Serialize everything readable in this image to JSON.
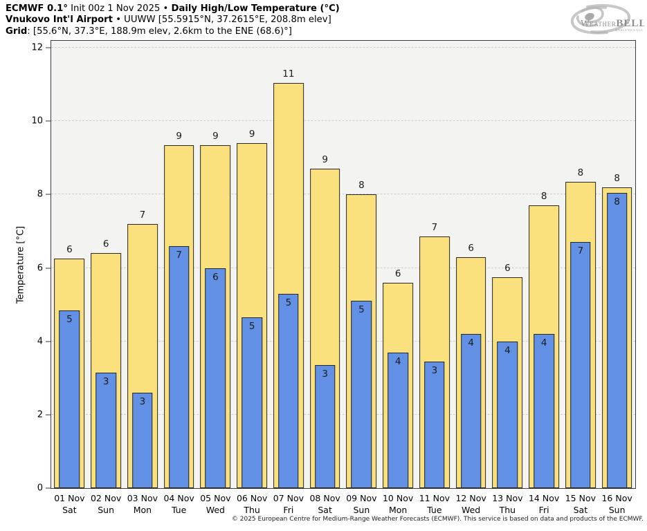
{
  "header": {
    "line1": {
      "bold1": "ECMWF 0.1°",
      "regular": " Init 00z 1 Nov 2025 • ",
      "bold2": "Daily High/Low Temperature (°C)"
    },
    "line2": {
      "bold": "Vnukovo Int'l Airport",
      "regular": " • UUWW [55.5915°N, 37.2615°E, 208.8m elev]"
    },
    "line3": {
      "bold": "Grid",
      "regular": ": [55.6°N, 37.3°E, 188.9m elev, 2.6km to the ENE (68.6)°]"
    }
  },
  "logo": {
    "w": "W",
    "eather": "EATHER",
    "bell": "BELL",
    "sub": "ANALYTICS LLC"
  },
  "chart_data": {
    "type": "bar",
    "title": "ECMWF 0.1° Init 00z 1 Nov 2025 — Daily High/Low Temperature (°C) — Vnukovo Int'l Airport",
    "ylabel": "Temperature [°C]",
    "xlabel": "",
    "ylim": [
      0,
      12.19
    ],
    "yticks": [
      0,
      2,
      4,
      6,
      8,
      10,
      12
    ],
    "grid": true,
    "legend": false,
    "categories": [
      "01 Nov",
      "02 Nov",
      "03 Nov",
      "04 Nov",
      "05 Nov",
      "06 Nov",
      "07 Nov",
      "08 Nov",
      "09 Nov",
      "10 Nov",
      "11 Nov",
      "12 Nov",
      "13 Nov",
      "14 Nov",
      "15 Nov",
      "16 Nov"
    ],
    "weekdays": [
      "Sat",
      "Sun",
      "Mon",
      "Tue",
      "Wed",
      "Thu",
      "Fri",
      "Sat",
      "Sun",
      "Mon",
      "Tue",
      "Wed",
      "Thu",
      "Fri",
      "Sat",
      "Sun"
    ],
    "series": [
      {
        "name": "Daily High",
        "color": "#fae17d",
        "values": [
          6.25,
          6.4,
          7.2,
          9.35,
          9.35,
          9.4,
          11.05,
          8.7,
          8.0,
          5.6,
          6.85,
          6.3,
          5.75,
          7.7,
          8.35,
          8.2
        ],
        "labels": [
          "6",
          "6",
          "7",
          "9",
          "9",
          "9",
          "11",
          "9",
          "8",
          "6",
          "7",
          "6",
          "6",
          "8",
          "8",
          "8"
        ]
      },
      {
        "name": "Daily Low",
        "color": "#6190e4",
        "values": [
          4.85,
          3.15,
          2.6,
          6.6,
          6.0,
          4.65,
          5.3,
          3.35,
          5.1,
          3.7,
          3.45,
          4.2,
          4.0,
          4.2,
          6.7,
          8.05
        ],
        "labels": [
          "5",
          "3",
          "3",
          "7",
          "6",
          "5",
          "5",
          "3",
          "5",
          "4",
          "3",
          "4",
          "4",
          "4",
          "7",
          "8"
        ]
      }
    ]
  },
  "colors": {
    "high_bar": "#fae17d",
    "low_bar": "#6190e4",
    "bar_border": "#262626",
    "plot_bg": "#f3f3f2",
    "gridline": "#cdcdcd",
    "logo_gray": "#a5a5a5"
  },
  "footer": {
    "copyright": "© 2025 European Centre for Medium-Range Weather Forecasts (ECMWF). This service is based on data and products of the ECMWF."
  }
}
